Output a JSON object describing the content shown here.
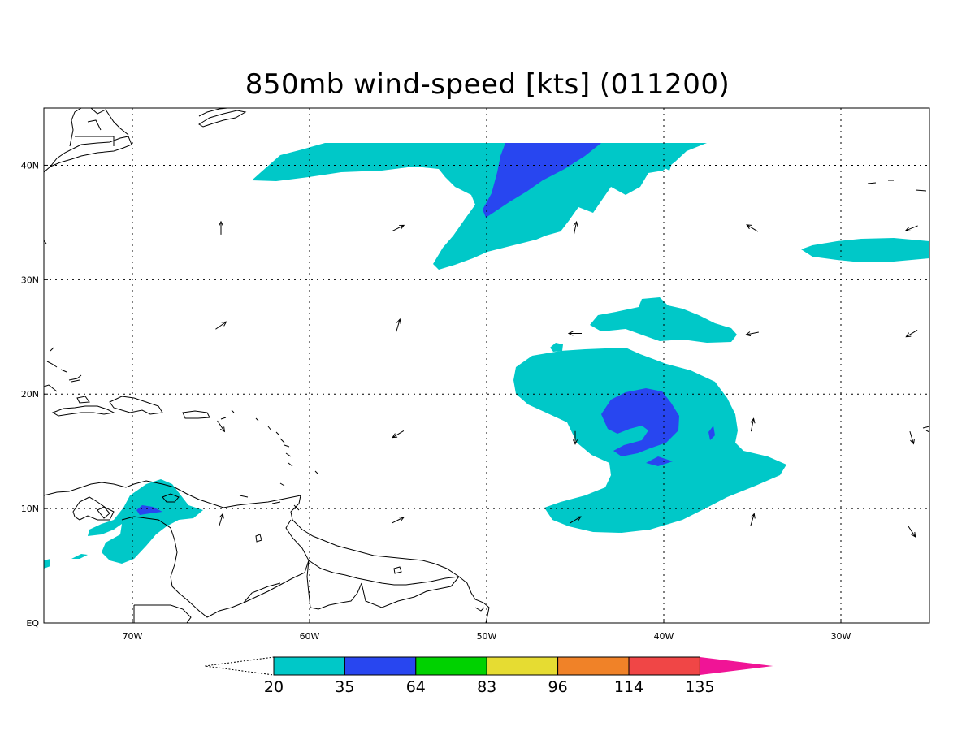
{
  "title": "850mb wind-speed [kts] (011200)",
  "colors": {
    "c20": "#00c8c8",
    "c35": "#2846f0",
    "c64": "#00d200",
    "c83": "#e6dc32",
    "c96": "#f08228",
    "c114": "#f04646",
    "c135": "#f01496"
  },
  "map": {
    "lon_range": [
      -75,
      -25
    ],
    "lat_range": [
      0,
      45
    ],
    "lon_ticks": [
      {
        "value": -70,
        "label": "70W"
      },
      {
        "value": -60,
        "label": "60W"
      },
      {
        "value": -50,
        "label": "50W"
      },
      {
        "value": -40,
        "label": "40W"
      },
      {
        "value": -30,
        "label": "30W"
      }
    ],
    "lat_ticks": [
      {
        "value": 0,
        "label": "EQ"
      },
      {
        "value": 10,
        "label": "10N"
      },
      {
        "value": 20,
        "label": "20N"
      },
      {
        "value": 30,
        "label": "30N"
      },
      {
        "value": 40,
        "label": "40N"
      }
    ]
  },
  "colorbar": {
    "labels": [
      "20",
      "35",
      "64",
      "83",
      "96",
      "114",
      "135"
    ],
    "fill_colors": [
      "#00c8c8",
      "#2846f0",
      "#00d200",
      "#e6dc32",
      "#f08228",
      "#f04646"
    ],
    "max_color": "#f01496"
  },
  "wind_vectors": [
    {
      "lon": -65,
      "lat": 34.5,
      "u": 0,
      "v": 1
    },
    {
      "lon": -55,
      "lat": 34.5,
      "u": 1,
      "v": 0.5
    },
    {
      "lon": -45,
      "lat": 34.5,
      "u": 0.2,
      "v": 1
    },
    {
      "lon": -35,
      "lat": 34.5,
      "u": -1,
      "v": 0.6
    },
    {
      "lon": -26,
      "lat": 34.5,
      "u": -1,
      "v": -0.4
    },
    {
      "lon": -65,
      "lat": 26,
      "u": 1,
      "v": 0.7
    },
    {
      "lon": -55,
      "lat": 26,
      "u": 0.3,
      "v": 1
    },
    {
      "lon": -45,
      "lat": 25.3,
      "u": -1,
      "v": 0
    },
    {
      "lon": -35,
      "lat": 25.3,
      "u": -1,
      "v": -0.2
    },
    {
      "lon": -26,
      "lat": 25.3,
      "u": -1,
      "v": -0.6
    },
    {
      "lon": -65,
      "lat": 17.2,
      "u": 0.6,
      "v": -0.9
    },
    {
      "lon": -55,
      "lat": 16.5,
      "u": -1,
      "v": -0.6
    },
    {
      "lon": -45,
      "lat": 16.2,
      "u": 0,
      "v": -1
    },
    {
      "lon": -35,
      "lat": 17.3,
      "u": 0.2,
      "v": 1
    },
    {
      "lon": -26,
      "lat": 16.2,
      "u": 0.3,
      "v": -1
    },
    {
      "lon": -65,
      "lat": 9,
      "u": 0.3,
      "v": 1
    },
    {
      "lon": -55,
      "lat": 9,
      "u": 1,
      "v": 0.5
    },
    {
      "lon": -45,
      "lat": 9,
      "u": 1,
      "v": 0.6
    },
    {
      "lon": -35,
      "lat": 9,
      "u": 0.3,
      "v": 1
    },
    {
      "lon": -26,
      "lat": 8,
      "u": 0.6,
      "v": -0.9
    }
  ]
}
